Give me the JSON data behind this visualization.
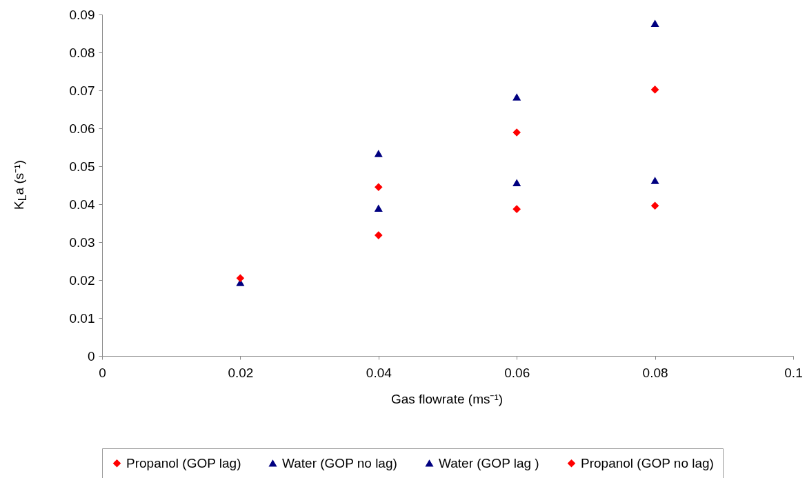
{
  "chart_data": {
    "type": "scatter",
    "xlabel": "Gas flowrate (ms⁻¹)",
    "ylabel": "K$_{L}$a (s⁻¹)",
    "x": [
      0.02,
      0.04,
      0.06,
      0.08
    ],
    "series": [
      {
        "name": "Propanol (GOP lag)",
        "color": "#ff0000",
        "marker": "diamond",
        "values": [
          null,
          0.0445,
          0.0589,
          0.0702
        ]
      },
      {
        "name": "Water (GOP no lag)",
        "color": "#000080",
        "marker": "triangle",
        "values": [
          null,
          0.0389,
          0.0456,
          0.0462
        ]
      },
      {
        "name": "Water (GOP lag )",
        "color": "#000080",
        "marker": "triangle",
        "values": [
          0.0193,
          0.0533,
          0.0682,
          0.0876
        ]
      },
      {
        "name": "Propanol (GOP no lag)",
        "color": "#ff0000",
        "marker": "diamond",
        "values": [
          0.0205,
          0.0318,
          0.0387,
          0.0396
        ]
      }
    ],
    "xlim": [
      0,
      0.1
    ],
    "xticks": [
      0,
      0.02,
      0.04,
      0.06,
      0.08,
      0.1
    ],
    "ylim": [
      0,
      0.09
    ],
    "yticks": [
      0,
      0.01,
      0.02,
      0.03,
      0.04,
      0.05,
      0.06,
      0.07,
      0.08,
      0.09
    ],
    "grid": false,
    "legend": "bottom"
  }
}
